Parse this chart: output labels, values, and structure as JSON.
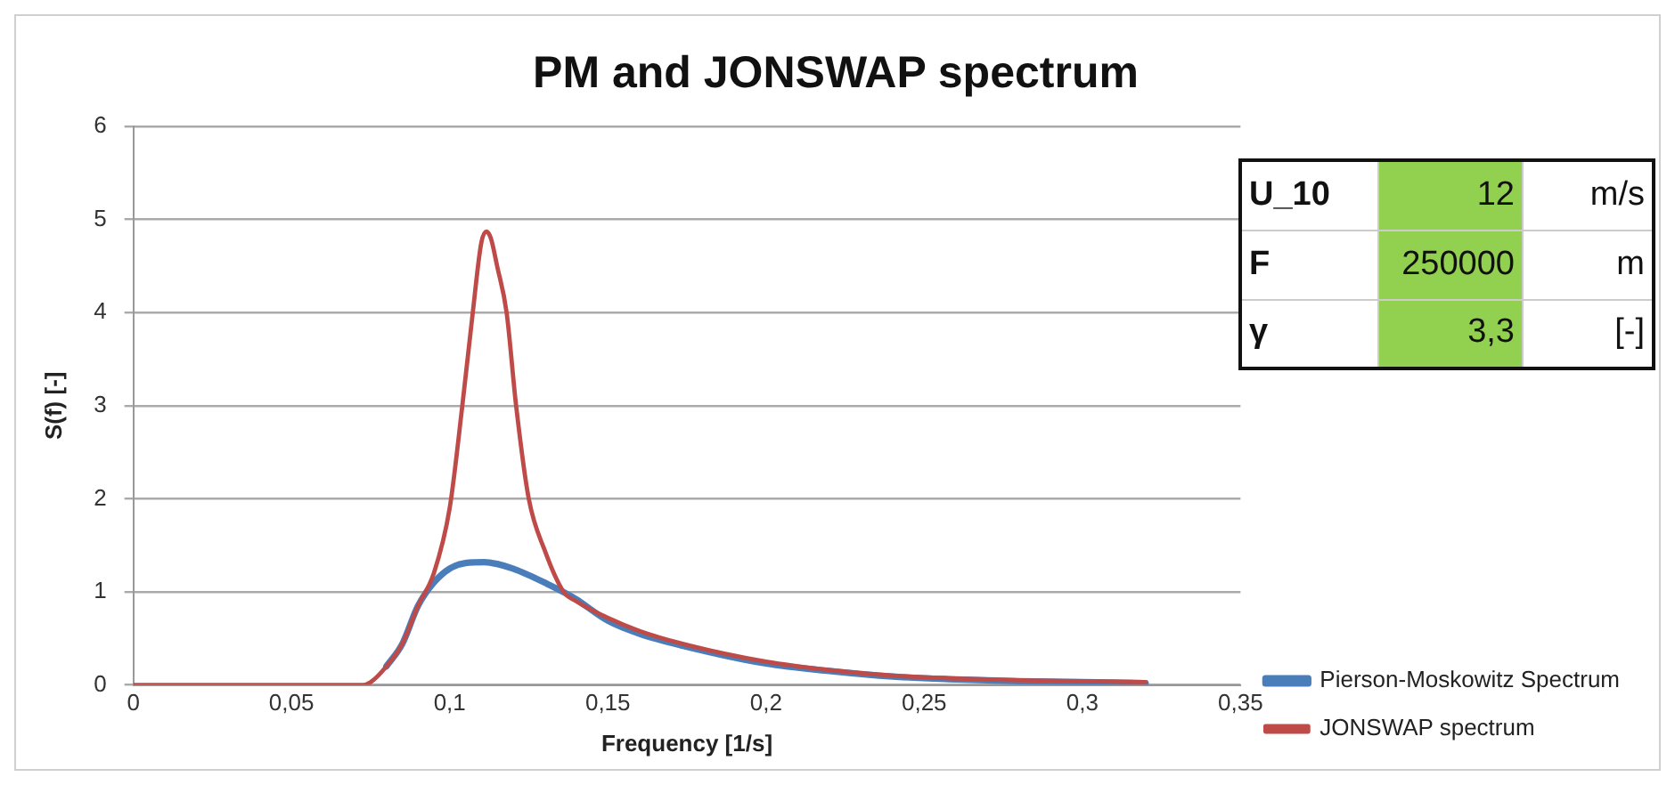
{
  "chart_data": {
    "type": "line",
    "title": "PM and JONSWAP spectrum",
    "xlabel": "Frequency [1/s]",
    "ylabel": "S(f) [-]",
    "xlim": [
      0,
      0.35
    ],
    "xticks": [
      0,
      {
        "value": 0.05,
        "label": "0,05"
      },
      {
        "value": 0.1,
        "label": "0,1"
      },
      {
        "value": 0.15,
        "label": "0,15"
      },
      {
        "value": 0.2,
        "label": "0,2"
      },
      {
        "value": 0.25,
        "label": "0,25"
      },
      {
        "value": 0.3,
        "label": "0,3"
      },
      {
        "value": 0.35,
        "label": "0,35"
      }
    ],
    "ylim": [
      0,
      6
    ],
    "yticks": [
      0,
      1,
      2,
      3,
      4,
      5,
      6
    ],
    "grid": "y",
    "legend": "right",
    "marker": "none",
    "line_style": "solid",
    "annotations": [
      "U_10",
      "12",
      "m/s",
      "F",
      "250000",
      "m",
      "γ",
      "3,3",
      "[-]"
    ],
    "series": [
      {
        "name": "Pierson-Moskowitz Spectrum",
        "color": "#4a7ebb",
        "x": [
          0.08,
          0.085,
          0.09,
          0.095,
          0.1,
          0.105,
          0.111,
          0.115,
          0.12,
          0.125,
          0.13,
          0.137,
          0.14,
          0.15,
          0.16,
          0.175,
          0.2,
          0.22,
          0.24,
          0.26,
          0.28,
          0.3,
          0.32
        ],
        "values": [
          0.2,
          0.44,
          0.85,
          1.1,
          1.25,
          1.31,
          1.32,
          1.3,
          1.25,
          1.18,
          1.1,
          0.98,
          0.92,
          0.69,
          0.55,
          0.41,
          0.23,
          0.15,
          0.09,
          0.06,
          0.04,
          0.03,
          0.02
        ]
      },
      {
        "name": "JONSWAP spectrum",
        "color": "#be4b48",
        "x": [
          0,
          0.07,
          0.0725,
          0.075,
          0.08,
          0.085,
          0.09,
          0.095,
          0.1,
          0.104,
          0.1073,
          0.11,
          0.1116,
          0.113,
          0.115,
          0.118,
          0.121,
          0.125,
          0.13,
          0.136,
          0.14,
          0.15,
          0.16,
          0.175,
          0.2,
          0.22,
          0.24,
          0.26,
          0.28,
          0.3,
          0.32
        ],
        "values": [
          0,
          0,
          0,
          0.03,
          0.2,
          0.44,
          0.85,
          1.2,
          1.9,
          3,
          4,
          4.75,
          4.87,
          4.8,
          4.5,
          4,
          3,
          2,
          1.45,
          1,
          0.9,
          0.72,
          0.58,
          0.43,
          0.25,
          0.16,
          0.1,
          0.07,
          0.05,
          0.04,
          0.03
        ]
      }
    ]
  }
}
